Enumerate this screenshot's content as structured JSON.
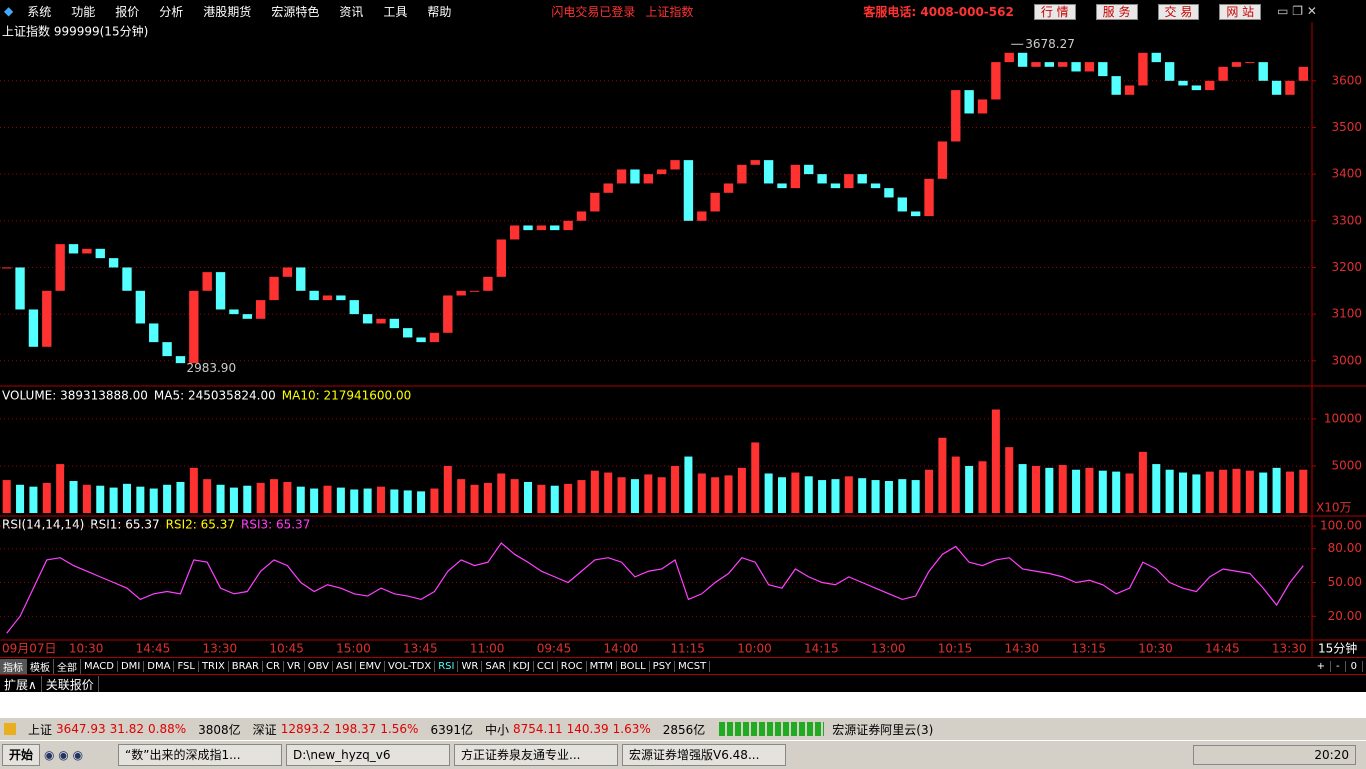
{
  "menu": {
    "items": [
      "系统",
      "功能",
      "报价",
      "分析",
      "港股期货",
      "宏源特色",
      "资讯",
      "工具",
      "帮助"
    ],
    "login_status": "闪电交易已登录",
    "current": "上证指数",
    "hotline": "客服电话: 4008-000-562",
    "buttons": [
      "行 情",
      "服 务",
      "交 易",
      "网 站"
    ]
  },
  "chart_data": [
    {
      "type": "candlestick",
      "title": "上证指数 999999(15分钟)",
      "period": "15分钟",
      "up_color": "#ff3232",
      "down_color": "#54ffff",
      "x": [
        "09月07日",
        null,
        null,
        null,
        null,
        "10:30",
        null,
        null,
        null,
        null,
        "14:45",
        null,
        null,
        null,
        null,
        "13:30",
        null,
        null,
        null,
        null,
        "10:45",
        null,
        null,
        null,
        null,
        "15:00",
        null,
        null,
        null,
        null,
        "13:45",
        null,
        null,
        null,
        null,
        "11:00",
        null,
        null,
        null,
        null,
        "09:45",
        null,
        null,
        null,
        null,
        "14:00",
        null,
        null,
        null,
        null,
        "11:15",
        null,
        null,
        null,
        null,
        "10:00",
        null,
        null,
        null,
        null,
        "14:15",
        null,
        null,
        null,
        null,
        "13:00",
        null,
        null,
        null,
        null,
        "10:15",
        null,
        null,
        null,
        null,
        "14:30",
        null,
        null,
        null,
        null,
        "13:15",
        null,
        null,
        null,
        null,
        "10:30",
        null,
        null,
        null,
        null,
        "14:45",
        null,
        null,
        null,
        null,
        "13:30",
        null,
        null
      ],
      "values": [
        3200,
        3110,
        3030,
        3150,
        3250,
        3230,
        3240,
        3220,
        3200,
        3150,
        3080,
        3040,
        3010,
        2995,
        3150,
        3190,
        3110,
        3100,
        3090,
        3130,
        3180,
        3200,
        3150,
        3130,
        3140,
        3130,
        3100,
        3080,
        3090,
        3070,
        3050,
        3040,
        3060,
        3140,
        3150,
        3150,
        3180,
        3260,
        3290,
        3280,
        3290,
        3280,
        3300,
        3320,
        3360,
        3380,
        3410,
        3380,
        3400,
        3410,
        3430,
        3300,
        3320,
        3360,
        3380,
        3420,
        3430,
        3380,
        3370,
        3420,
        3400,
        3380,
        3370,
        3400,
        3380,
        3370,
        3350,
        3320,
        3310,
        3390,
        3470,
        3580,
        3530,
        3560,
        3640,
        3660,
        3630,
        3640,
        3630,
        3640,
        3620,
        3640,
        3610,
        3570,
        3590,
        3660,
        3640,
        3600,
        3590,
        3580,
        3600,
        3630,
        3640,
        3640,
        3600,
        3570,
        3600,
        3630
      ],
      "low_label": {
        "value": 2983.9,
        "label": "2983.90"
      },
      "high_label": {
        "value": 3678.27,
        "label": "3678.27"
      },
      "ylim": [
        2946,
        3726
      ],
      "yticks": [
        3000,
        3100,
        3200,
        3300,
        3400,
        3500,
        3600
      ],
      "grid": true
    },
    {
      "type": "bar",
      "readouts": [
        {
          "text": "VOLUME: 389313888.00",
          "color": "#ffffff"
        },
        {
          "text": "MA5: 245035824.00",
          "color": "#ffffff"
        },
        {
          "text": "MA10: 217941600.00",
          "color": "#ffff00"
        }
      ],
      "unit": "X10万",
      "values": [
        3500,
        3000,
        2800,
        3200,
        5200,
        3400,
        3000,
        2900,
        2700,
        3100,
        2800,
        2600,
        3000,
        3300,
        4800,
        3600,
        3000,
        2700,
        2900,
        3200,
        3600,
        3300,
        2800,
        2600,
        2900,
        2700,
        2500,
        2600,
        2800,
        2500,
        2400,
        2300,
        2600,
        5000,
        3600,
        3000,
        3200,
        4200,
        3600,
        3300,
        3000,
        2900,
        3100,
        3500,
        4500,
        4300,
        3800,
        3600,
        4100,
        3800,
        5000,
        6000,
        4200,
        3800,
        4000,
        4800,
        7500,
        4200,
        3800,
        4300,
        3900,
        3500,
        3600,
        3900,
        3700,
        3500,
        3400,
        3600,
        3500,
        4600,
        8000,
        6000,
        5000,
        5500,
        11000,
        7000,
        5200,
        5000,
        4800,
        5100,
        4600,
        4800,
        4500,
        4400,
        4200,
        6500,
        5200,
        4600,
        4300,
        4100,
        4400,
        4600,
        4700,
        4500,
        4300,
        4800,
        4400,
        4600
      ],
      "ylim": [
        0,
        13500
      ],
      "yticks": [
        5000,
        10000
      ],
      "grid": true
    },
    {
      "type": "line",
      "title": "RSI(14,14,14)",
      "color": "#ff40ff",
      "readouts": [
        {
          "text": "RSI1: 65.37",
          "color": "#ffffff"
        },
        {
          "text": "RSI2: 65.37",
          "color": "#ffff00"
        },
        {
          "text": "RSI3: 65.37",
          "color": "#ff40ff"
        }
      ],
      "values": [
        5,
        20,
        45,
        70,
        72,
        65,
        60,
        55,
        50,
        45,
        35,
        40,
        42,
        40,
        70,
        68,
        45,
        40,
        42,
        60,
        70,
        65,
        50,
        42,
        48,
        45,
        40,
        38,
        45,
        40,
        38,
        35,
        42,
        60,
        70,
        65,
        68,
        85,
        75,
        68,
        60,
        55,
        50,
        60,
        70,
        72,
        68,
        55,
        60,
        62,
        70,
        35,
        40,
        50,
        58,
        72,
        68,
        48,
        45,
        62,
        55,
        50,
        48,
        55,
        50,
        45,
        40,
        35,
        38,
        60,
        75,
        82,
        68,
        65,
        70,
        72,
        62,
        60,
        58,
        55,
        50,
        52,
        48,
        40,
        45,
        68,
        62,
        50,
        45,
        42,
        55,
        62,
        60,
        58,
        45,
        30,
        50,
        65
      ],
      "ylim": [
        -1,
        109
      ],
      "yticks": [
        {
          "value": 20,
          "label": "20.00"
        },
        {
          "value": 50,
          "label": "50.00"
        },
        {
          "value": 80,
          "label": "80.00"
        },
        {
          "value": 100,
          "label": "100.00"
        }
      ],
      "grid": true
    }
  ],
  "tabs": {
    "items": [
      "指标",
      "模板",
      "全部",
      "MACD",
      "DMI",
      "DMA",
      "FSL",
      "TRIX",
      "BRAR",
      "CR",
      "VR",
      "OBV",
      "ASI",
      "EMV",
      "VOL-TDX",
      "RSI",
      "WR",
      "SAR",
      "KDJ",
      "CCI",
      "ROC",
      "MTM",
      "BOLL",
      "PSY",
      "MCST"
    ],
    "active_index": 15,
    "controls": [
      "+",
      "-",
      "0"
    ]
  },
  "subtabs": [
    "扩展∧",
    "关联报价"
  ],
  "status": {
    "markets": [
      {
        "name": "上证",
        "index": "3647.93",
        "change": "31.82",
        "pct": "0.88%",
        "turnover": "3808亿"
      },
      {
        "name": "深证",
        "index": "12893.2",
        "change": "198.37",
        "pct": "1.56%",
        "turnover": "6391亿"
      },
      {
        "name": "中小",
        "index": "8754.11",
        "change": "140.39",
        "pct": "1.63%",
        "turnover": "2856亿"
      }
    ],
    "server": "宏源证券阿里云(3)"
  },
  "taskbar": {
    "start": "开始",
    "tasks": [
      "“数”出来的深成指1...",
      "D:\\new_hyzq_v6",
      "方正证券泉友通专业...",
      "宏源证券增强版V6.48..."
    ],
    "clock": "20:20"
  }
}
